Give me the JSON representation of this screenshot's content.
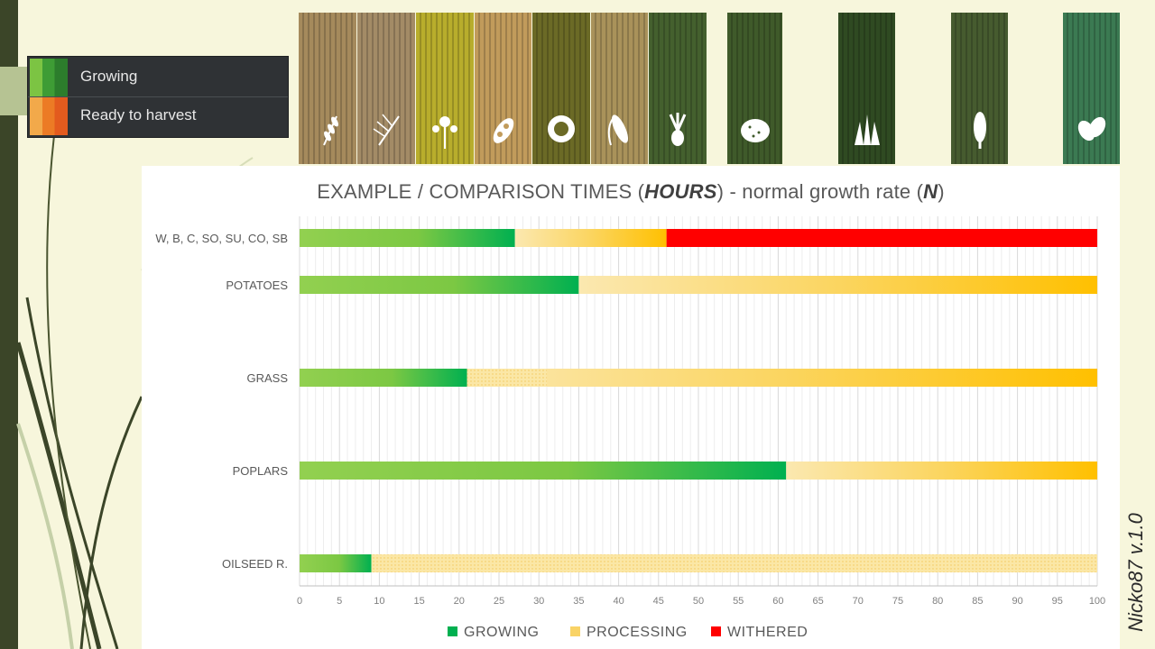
{
  "status_legend": {
    "items": [
      {
        "label": "Growing",
        "colors": [
          "#7cc443",
          "#3e9c35",
          "#2c7d2c"
        ]
      },
      {
        "label": "Ready to harvest",
        "colors": [
          "#f2a94a",
          "#ec7b25",
          "#e35b1e"
        ]
      }
    ]
  },
  "crop_tiles": [
    {
      "name": "wheat",
      "icon": "wheat-icon",
      "bg": "#a58a5c"
    },
    {
      "name": "barley",
      "icon": "barley-icon",
      "bg": "#a38b66"
    },
    {
      "name": "canola",
      "icon": "canola-icon",
      "bg": "#b8ad2c"
    },
    {
      "name": "soybean",
      "icon": "soybean-icon",
      "bg": "#c19b5b"
    },
    {
      "name": "sunflower",
      "icon": "sunflower-icon",
      "bg": "#6b6a26"
    },
    {
      "name": "corn",
      "icon": "corn-icon",
      "bg": "#a9925a"
    },
    {
      "name": "sugarbeet",
      "icon": "sugarbeet-icon",
      "bg": "#44602e"
    },
    {
      "name": "potato",
      "icon": "potato-icon",
      "bg": "#3f5a2a"
    },
    {
      "name": "grass",
      "icon": "grass-icon",
      "bg": "#2f4a22"
    },
    {
      "name": "poplar",
      "icon": "poplar-icon",
      "bg": "#465b2f"
    },
    {
      "name": "oilseed",
      "icon": "leaf-icon",
      "bg": "#3b7a52"
    }
  ],
  "credit": "Nicko87 v.1.0",
  "chart_data": {
    "type": "bar",
    "orientation": "horizontal",
    "stacked": true,
    "title_parts": [
      {
        "text": "EXAMPLE / COMPARISON TIMES (",
        "bold": false
      },
      {
        "text": "HOURS",
        "bold": true
      },
      {
        "text": ") - normal growth rate (",
        "bold": false
      },
      {
        "text": "N",
        "bold": true
      },
      {
        "text": ")",
        "bold": false
      }
    ],
    "categories": [
      "W, B, C, SO, SU, CO, SB",
      "POTATOES",
      "GRASS",
      "POPLARS",
      "OILSEED R."
    ],
    "series": [
      {
        "name": "GROWING",
        "color": "#00b050",
        "values": [
          27,
          35,
          21,
          61,
          9
        ]
      },
      {
        "name": "PROCESSING",
        "color": "#ffc000",
        "values": [
          19,
          65,
          79,
          39,
          91
        ]
      },
      {
        "name": "WITHERED",
        "color": "#ff0000",
        "values": [
          54,
          0,
          0,
          0,
          0
        ]
      }
    ],
    "xlim": [
      0,
      100
    ],
    "xticks": [
      0,
      5,
      10,
      15,
      20,
      25,
      30,
      35,
      40,
      45,
      50,
      55,
      60,
      65,
      70,
      75,
      80,
      85,
      90,
      95,
      100
    ],
    "grid": true,
    "legend_position": "bottom"
  }
}
